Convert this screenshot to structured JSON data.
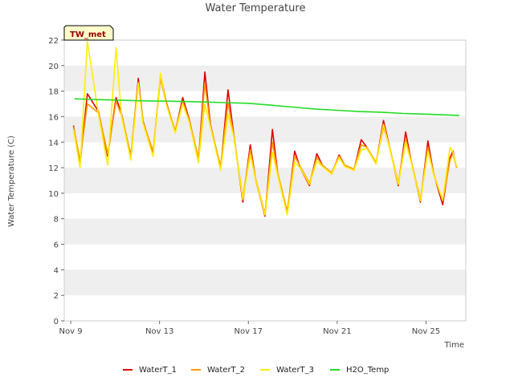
{
  "chart_data": {
    "type": "line",
    "title": "Water Temperature",
    "xlabel": "Time",
    "ylabel": "Water Temperature (C)",
    "site_label": "TW_met",
    "x_range": [
      "2023-11-08T17:00",
      "2023-11-26T19:00"
    ],
    "ylim": [
      0,
      22
    ],
    "yticks": [
      0,
      2,
      4,
      6,
      8,
      10,
      12,
      14,
      16,
      18,
      20,
      22
    ],
    "xticks": [
      {
        "label": "Nov 9",
        "date": "2023-11-09"
      },
      {
        "label": "Nov 13",
        "date": "2023-11-13"
      },
      {
        "label": "Nov 17",
        "date": "2023-11-17"
      },
      {
        "label": "Nov 21",
        "date": "2023-11-21"
      },
      {
        "label": "Nov 25",
        "date": "2023-11-25"
      }
    ],
    "grid": "horizontal bands",
    "legend_position": "bottom",
    "series": [
      {
        "name": "WaterT_1",
        "color": "#dd0000",
        "points": [
          [
            "2023-11-09T03:00",
            15.3
          ],
          [
            "2023-11-09T10:00",
            12.3
          ],
          [
            "2023-11-09T18:00",
            17.8
          ],
          [
            "2023-11-10T06:00",
            16.4
          ],
          [
            "2023-11-10T16:00",
            12.9
          ],
          [
            "2023-11-11T01:00",
            17.5
          ],
          [
            "2023-11-11T07:00",
            16.2
          ],
          [
            "2023-11-11T17:00",
            12.8
          ],
          [
            "2023-11-12T01:00",
            19.0
          ],
          [
            "2023-11-12T06:00",
            15.7
          ],
          [
            "2023-11-12T17:00",
            13.1
          ],
          [
            "2023-11-13T01:00",
            19.3
          ],
          [
            "2023-11-13T07:00",
            17.2
          ],
          [
            "2023-11-13T17:00",
            14.8
          ],
          [
            "2023-11-14T01:00",
            17.5
          ],
          [
            "2023-11-14T08:00",
            15.8
          ],
          [
            "2023-11-14T18:00",
            12.6
          ],
          [
            "2023-11-15T01:00",
            19.5
          ],
          [
            "2023-11-15T07:00",
            15.4
          ],
          [
            "2023-11-15T18:00",
            11.9
          ],
          [
            "2023-11-16T02:00",
            18.1
          ],
          [
            "2023-11-16T08:00",
            14.7
          ],
          [
            "2023-11-16T18:00",
            9.3
          ],
          [
            "2023-11-17T02:00",
            13.8
          ],
          [
            "2023-11-17T08:00",
            11.0
          ],
          [
            "2023-11-17T18:00",
            8.2
          ],
          [
            "2023-11-18T02:00",
            15.0
          ],
          [
            "2023-11-18T08:00",
            11.4
          ],
          [
            "2023-11-18T18:00",
            8.4
          ],
          [
            "2023-11-19T02:00",
            13.3
          ],
          [
            "2023-11-19T08:00",
            12.0
          ],
          [
            "2023-11-19T18:00",
            10.6
          ],
          [
            "2023-11-20T02:00",
            13.1
          ],
          [
            "2023-11-20T08:00",
            12.2
          ],
          [
            "2023-11-20T18:00",
            11.5
          ],
          [
            "2023-11-21T02:00",
            13.0
          ],
          [
            "2023-11-21T08:00",
            12.2
          ],
          [
            "2023-11-21T18:00",
            11.8
          ],
          [
            "2023-11-22T02:00",
            14.2
          ],
          [
            "2023-11-22T08:00",
            13.6
          ],
          [
            "2023-11-22T18:00",
            12.3
          ],
          [
            "2023-11-23T02:00",
            15.7
          ],
          [
            "2023-11-23T08:00",
            13.8
          ],
          [
            "2023-11-23T18:00",
            10.6
          ],
          [
            "2023-11-24T02:00",
            14.8
          ],
          [
            "2023-11-24T08:00",
            12.5
          ],
          [
            "2023-11-24T18:00",
            9.3
          ],
          [
            "2023-11-25T02:00",
            14.1
          ],
          [
            "2023-11-25T08:00",
            11.6
          ],
          [
            "2023-11-25T18:00",
            9.1
          ],
          [
            "2023-11-26T02:00",
            12.8
          ],
          [
            "2023-11-26T05:00",
            13.3
          ],
          [
            "2023-11-26T09:00",
            12.0
          ]
        ]
      },
      {
        "name": "WaterT_2",
        "color": "#ff9900",
        "points": [
          [
            "2023-11-09T03:00",
            15.2
          ],
          [
            "2023-11-09T10:00",
            12.6
          ],
          [
            "2023-11-09T18:00",
            17.0
          ],
          [
            "2023-11-10T06:00",
            16.3
          ],
          [
            "2023-11-10T16:00",
            13.1
          ],
          [
            "2023-11-11T01:00",
            17.2
          ],
          [
            "2023-11-11T07:00",
            16.1
          ],
          [
            "2023-11-11T17:00",
            13.0
          ],
          [
            "2023-11-12T01:00",
            18.7
          ],
          [
            "2023-11-12T06:00",
            15.6
          ],
          [
            "2023-11-12T17:00",
            13.3
          ],
          [
            "2023-11-13T01:00",
            19.0
          ],
          [
            "2023-11-13T07:00",
            17.1
          ],
          [
            "2023-11-13T17:00",
            14.9
          ],
          [
            "2023-11-14T01:00",
            17.2
          ],
          [
            "2023-11-14T08:00",
            15.7
          ],
          [
            "2023-11-14T18:00",
            12.8
          ],
          [
            "2023-11-15T01:00",
            18.6
          ],
          [
            "2023-11-15T07:00",
            15.3
          ],
          [
            "2023-11-15T18:00",
            12.1
          ],
          [
            "2023-11-16T02:00",
            17.1
          ],
          [
            "2023-11-16T08:00",
            14.6
          ],
          [
            "2023-11-16T18:00",
            9.6
          ],
          [
            "2023-11-17T02:00",
            13.4
          ],
          [
            "2023-11-17T08:00",
            11.1
          ],
          [
            "2023-11-17T18:00",
            8.4
          ],
          [
            "2023-11-18T02:00",
            14.0
          ],
          [
            "2023-11-18T08:00",
            11.5
          ],
          [
            "2023-11-18T18:00",
            8.6
          ],
          [
            "2023-11-19T02:00",
            12.9
          ],
          [
            "2023-11-19T08:00",
            12.1
          ],
          [
            "2023-11-19T18:00",
            10.8
          ],
          [
            "2023-11-20T02:00",
            12.8
          ],
          [
            "2023-11-20T08:00",
            12.2
          ],
          [
            "2023-11-20T18:00",
            11.6
          ],
          [
            "2023-11-21T02:00",
            12.9
          ],
          [
            "2023-11-21T08:00",
            12.2
          ],
          [
            "2023-11-21T18:00",
            11.9
          ],
          [
            "2023-11-22T02:00",
            13.8
          ],
          [
            "2023-11-22T08:00",
            13.6
          ],
          [
            "2023-11-22T18:00",
            12.4
          ],
          [
            "2023-11-23T02:00",
            15.2
          ],
          [
            "2023-11-23T08:00",
            13.8
          ],
          [
            "2023-11-23T18:00",
            10.8
          ],
          [
            "2023-11-24T02:00",
            14.3
          ],
          [
            "2023-11-24T08:00",
            12.5
          ],
          [
            "2023-11-24T18:00",
            9.5
          ],
          [
            "2023-11-25T02:00",
            13.6
          ],
          [
            "2023-11-25T08:00",
            11.6
          ],
          [
            "2023-11-25T18:00",
            9.4
          ],
          [
            "2023-11-26T02:00",
            12.6
          ],
          [
            "2023-11-26T05:00",
            13.1
          ],
          [
            "2023-11-26T09:00",
            12.0
          ]
        ]
      },
      {
        "name": "WaterT_3",
        "color": "#ffee00",
        "points": [
          [
            "2023-11-09T03:00",
            15.0
          ],
          [
            "2023-11-09T10:00",
            12.0
          ],
          [
            "2023-11-09T18:00",
            21.9
          ],
          [
            "2023-11-10T06:00",
            16.2
          ],
          [
            "2023-11-10T16:00",
            12.2
          ],
          [
            "2023-11-11T01:00",
            21.4
          ],
          [
            "2023-11-11T07:00",
            16.0
          ],
          [
            "2023-11-11T17:00",
            12.6
          ],
          [
            "2023-11-12T01:00",
            18.6
          ],
          [
            "2023-11-12T06:00",
            15.5
          ],
          [
            "2023-11-12T17:00",
            12.9
          ],
          [
            "2023-11-13T01:00",
            19.4
          ],
          [
            "2023-11-13T07:00",
            17.0
          ],
          [
            "2023-11-13T17:00",
            14.7
          ],
          [
            "2023-11-14T01:00",
            17.0
          ],
          [
            "2023-11-14T08:00",
            15.6
          ],
          [
            "2023-11-14T18:00",
            12.4
          ],
          [
            "2023-11-15T01:00",
            17.0
          ],
          [
            "2023-11-15T07:00",
            15.2
          ],
          [
            "2023-11-15T18:00",
            11.8
          ],
          [
            "2023-11-16T02:00",
            16.2
          ],
          [
            "2023-11-16T08:00",
            14.5
          ],
          [
            "2023-11-16T18:00",
            9.5
          ],
          [
            "2023-11-17T02:00",
            13.0
          ],
          [
            "2023-11-17T08:00",
            11.0
          ],
          [
            "2023-11-17T18:00",
            8.3
          ],
          [
            "2023-11-18T02:00",
            13.2
          ],
          [
            "2023-11-18T08:00",
            11.3
          ],
          [
            "2023-11-18T18:00",
            8.3
          ],
          [
            "2023-11-19T02:00",
            12.4
          ],
          [
            "2023-11-19T08:00",
            12.0
          ],
          [
            "2023-11-19T18:00",
            10.7
          ],
          [
            "2023-11-20T02:00",
            12.5
          ],
          [
            "2023-11-20T08:00",
            12.1
          ],
          [
            "2023-11-20T18:00",
            11.5
          ],
          [
            "2023-11-21T02:00",
            12.8
          ],
          [
            "2023-11-21T08:00",
            12.1
          ],
          [
            "2023-11-21T18:00",
            11.8
          ],
          [
            "2023-11-22T02:00",
            13.4
          ],
          [
            "2023-11-22T08:00",
            13.5
          ],
          [
            "2023-11-22T18:00",
            12.3
          ],
          [
            "2023-11-23T02:00",
            15.4
          ],
          [
            "2023-11-23T08:00",
            13.7
          ],
          [
            "2023-11-23T18:00",
            10.7
          ],
          [
            "2023-11-24T02:00",
            14.0
          ],
          [
            "2023-11-24T08:00",
            12.4
          ],
          [
            "2023-11-24T18:00",
            9.4
          ],
          [
            "2023-11-25T02:00",
            13.3
          ],
          [
            "2023-11-25T08:00",
            11.5
          ],
          [
            "2023-11-25T18:00",
            9.5
          ],
          [
            "2023-11-26T02:00",
            13.6
          ],
          [
            "2023-11-26T05:00",
            13.2
          ],
          [
            "2023-11-26T09:00",
            12.1
          ]
        ]
      },
      {
        "name": "H2O_Temp",
        "color": "#22dd22",
        "points": [
          [
            "2023-11-09T04:00",
            17.4
          ],
          [
            "2023-11-10T00:00",
            17.35
          ],
          [
            "2023-11-12T00:00",
            17.25
          ],
          [
            "2023-11-14T00:00",
            17.2
          ],
          [
            "2023-11-16T00:00",
            17.1
          ],
          [
            "2023-11-17T00:00",
            17.05
          ],
          [
            "2023-11-18T00:00",
            16.9
          ],
          [
            "2023-11-19T00:00",
            16.75
          ],
          [
            "2023-11-20T00:00",
            16.6
          ],
          [
            "2023-11-21T00:00",
            16.5
          ],
          [
            "2023-11-22T00:00",
            16.4
          ],
          [
            "2023-11-23T00:00",
            16.35
          ],
          [
            "2023-11-24T00:00",
            16.25
          ],
          [
            "2023-11-25T00:00",
            16.2
          ],
          [
            "2023-11-26T12:00",
            16.1
          ]
        ]
      }
    ]
  }
}
